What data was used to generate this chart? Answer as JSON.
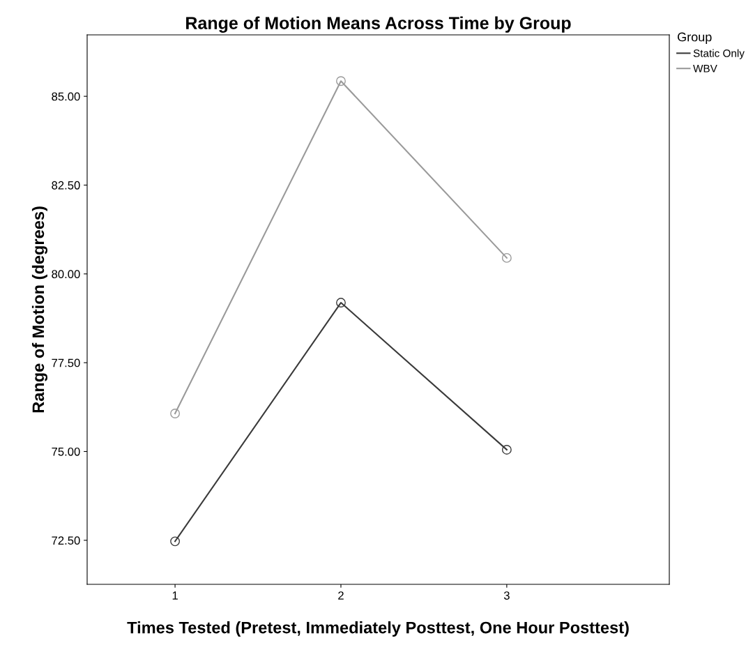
{
  "chart_data": {
    "type": "line",
    "title": "Range of Motion Means Across Time by Group",
    "xlabel": "Times Tested (Pretest, Immediately Posttest, One Hour Posttest)",
    "ylabel": "Range of Motion (degrees)",
    "x": [
      1,
      2,
      3
    ],
    "series": [
      {
        "name": "Static Only",
        "color": "#3a3a3a",
        "values": [
          72.47,
          79.19,
          75.05
        ]
      },
      {
        "name": "WBV",
        "color": "#9a9a9a",
        "values": [
          76.07,
          85.43,
          80.45
        ]
      }
    ],
    "xlim": [
      0.47,
      3.98
    ],
    "xticks": [
      1,
      2,
      3
    ],
    "ylim": [
      71.26,
      86.73
    ],
    "yticks": [
      {
        "value": 72.5,
        "label": "72.50"
      },
      {
        "value": 75,
        "label": "75.00"
      },
      {
        "value": 77.5,
        "label": "77.50"
      },
      {
        "value": 80,
        "label": "80.00"
      },
      {
        "value": 82.5,
        "label": "82.50"
      },
      {
        "value": 85,
        "label": "85.00"
      }
    ],
    "legend_title": "Group",
    "legend": "top right",
    "grid": false,
    "marker": "circle",
    "line_style": "solid"
  }
}
